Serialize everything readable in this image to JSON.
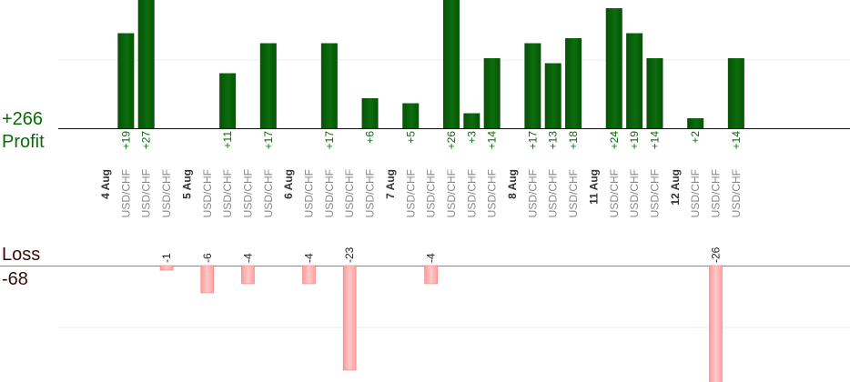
{
  "summary": {
    "profit_total": "+266",
    "profit_label": "Profit",
    "loss_label": "Loss",
    "loss_total": "-68"
  },
  "colors": {
    "profit_bar": "#0b6b0b",
    "loss_bar": "#ffb3b3",
    "profit_text": "#0a6b0a",
    "day_text": "#333333",
    "pair_text": "#888888"
  },
  "chart_data": {
    "type": "bar",
    "series": [
      {
        "name": "Profit"
      },
      {
        "name": "Loss"
      }
    ],
    "columns": [
      {
        "label": "4 Aug",
        "kind": "day"
      },
      {
        "label": "USD/CHF",
        "kind": "trade",
        "value": 19,
        "value_label": "+19"
      },
      {
        "label": "USD/CHF",
        "kind": "trade",
        "value": 27,
        "value_label": "+27"
      },
      {
        "label": "USD/CHF",
        "kind": "trade",
        "value": -1,
        "value_label": "-1"
      },
      {
        "label": "5 Aug",
        "kind": "day"
      },
      {
        "label": "USD/CHF",
        "kind": "trade",
        "value": -6,
        "value_label": "-6"
      },
      {
        "label": "USD/CHF",
        "kind": "trade",
        "value": 11,
        "value_label": "+11"
      },
      {
        "label": "USD/CHF",
        "kind": "trade",
        "value": -4,
        "value_label": "-4"
      },
      {
        "label": "USD/CHF",
        "kind": "trade",
        "value": 17,
        "value_label": "+17"
      },
      {
        "label": "6 Aug",
        "kind": "day"
      },
      {
        "label": "USD/CHF",
        "kind": "trade",
        "value": -4,
        "value_label": "-4"
      },
      {
        "label": "USD/CHF",
        "kind": "trade",
        "value": 17,
        "value_label": "+17"
      },
      {
        "label": "USD/CHF",
        "kind": "trade",
        "value": -23,
        "value_label": "-23"
      },
      {
        "label": "USD/CHF",
        "kind": "trade",
        "value": 6,
        "value_label": "+6"
      },
      {
        "label": "7 Aug",
        "kind": "day"
      },
      {
        "label": "USD/CHF",
        "kind": "trade",
        "value": 5,
        "value_label": "+5"
      },
      {
        "label": "USD/CHF",
        "kind": "trade",
        "value": -4,
        "value_label": "-4"
      },
      {
        "label": "USD/CHF",
        "kind": "trade",
        "value": 26,
        "value_label": "+26"
      },
      {
        "label": "USD/CHF",
        "kind": "trade",
        "value": 3,
        "value_label": "+3"
      },
      {
        "label": "USD/CHF",
        "kind": "trade",
        "value": 14,
        "value_label": "+14"
      },
      {
        "label": "8 Aug",
        "kind": "day"
      },
      {
        "label": "USD/CHF",
        "kind": "trade",
        "value": 17,
        "value_label": "+17"
      },
      {
        "label": "USD/CHF",
        "kind": "trade",
        "value": 13,
        "value_label": "+13"
      },
      {
        "label": "USD/CHF",
        "kind": "trade",
        "value": 18,
        "value_label": "+18"
      },
      {
        "label": "11 Aug",
        "kind": "day"
      },
      {
        "label": "USD/CHF",
        "kind": "trade",
        "value": 24,
        "value_label": "+24"
      },
      {
        "label": "USD/CHF",
        "kind": "trade",
        "value": 19,
        "value_label": "+19"
      },
      {
        "label": "USD/CHF",
        "kind": "trade",
        "value": 14,
        "value_label": "+14"
      },
      {
        "label": "12 Aug",
        "kind": "day"
      },
      {
        "label": "USD/CHF",
        "kind": "trade",
        "value": 2,
        "value_label": "+2"
      },
      {
        "label": "USD/CHF",
        "kind": "trade",
        "value": -26,
        "value_label": "-26"
      },
      {
        "label": "USD/CHF",
        "kind": "trade",
        "value": 14,
        "value_label": "+14"
      }
    ]
  }
}
